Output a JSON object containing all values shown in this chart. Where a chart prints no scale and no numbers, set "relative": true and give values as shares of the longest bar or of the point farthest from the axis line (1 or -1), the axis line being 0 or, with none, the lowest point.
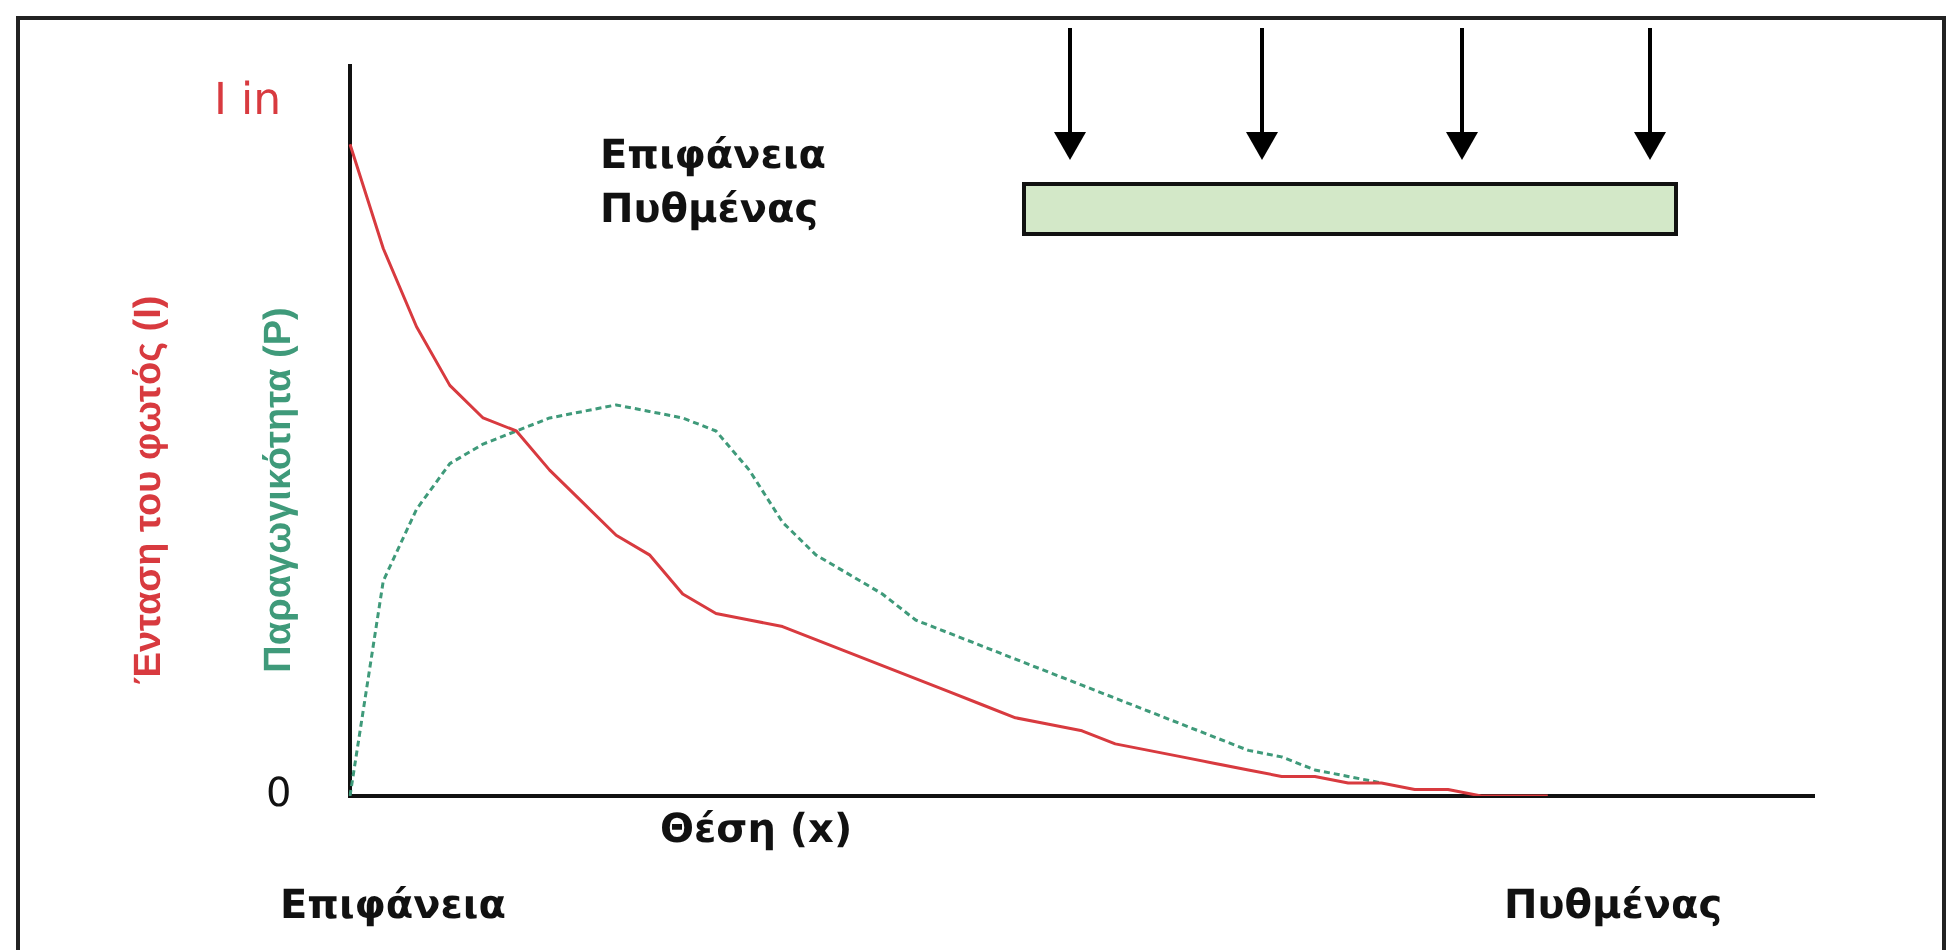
{
  "chart_data": {
    "type": "line",
    "xlabel": "Θέση (x)",
    "categories": [
      null,
      null,
      null,
      null,
      null,
      null,
      null,
      null,
      null,
      null,
      null,
      null,
      null,
      null,
      null,
      null,
      null,
      null,
      null,
      null,
      null,
      null,
      null,
      null,
      null,
      null,
      null,
      null,
      null,
      null,
      null,
      null,
      null,
      null,
      null,
      null,
      null,
      null,
      null,
      null,
      null,
      null,
      null,
      null,
      null
    ],
    "series": [
      {
        "name": "Ένταση του φωτός (I)",
        "color": "#d83a3f",
        "line_style": "solid",
        "values": [
          1,
          0.84,
          0.72,
          0.63,
          0.58,
          0.56,
          0.5,
          0.45,
          0.4,
          0.37,
          0.31,
          0.28,
          0.27,
          0.26,
          0.24,
          0.22,
          0.2,
          0.18,
          0.16,
          0.14,
          0.12,
          0.11,
          0.1,
          0.08,
          0.07,
          0.06,
          0.05,
          0.04,
          0.03,
          0.03,
          0.02,
          0.02,
          0.01,
          0.01,
          0,
          0,
          0,
          null,
          null,
          null,
          null,
          null,
          null,
          null,
          null
        ]
      },
      {
        "name": "Παραγωγικότητα (P)",
        "color": "#3f9a7a",
        "line_style": "dashed",
        "values": [
          0,
          0.33,
          0.44,
          0.51,
          0.54,
          0.56,
          0.58,
          0.59,
          0.6,
          0.59,
          0.58,
          0.56,
          0.5,
          0.42,
          0.37,
          0.34,
          0.31,
          0.27,
          0.25,
          0.23,
          0.21,
          0.19,
          0.17,
          0.15,
          0.13,
          0.11,
          0.09,
          0.07,
          0.06,
          0.04,
          0.03,
          0.02,
          null,
          null,
          null,
          null,
          null,
          null,
          null,
          null,
          null,
          null,
          null,
          null,
          null
        ]
      }
    ],
    "relative": true,
    "grid": false,
    "marker": "none",
    "annotations": [
      "I in",
      "0",
      "Επιφάνεια",
      "Πυθμένας",
      "Επιφάνεια",
      "Πυθμένας"
    ]
  }
}
